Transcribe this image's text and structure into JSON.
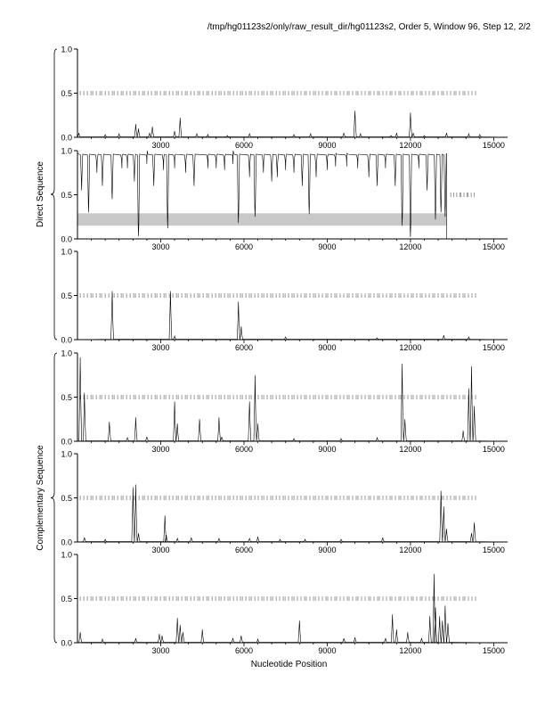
{
  "header": {
    "title": "/tmp/hg01123s2/only/raw_result_dir/hg01123s2, Order 5, Window 96, Step 12, 2/2"
  },
  "groups": [
    {
      "label": "Direct Sequence"
    },
    {
      "label": "Complementary Sequence"
    }
  ],
  "xlabel": "Nucleotide Position",
  "chart_data": [
    {
      "type": "line",
      "title": "",
      "xlim": [
        0,
        15500
      ],
      "ylim": [
        0,
        1
      ],
      "xticks": [
        3000,
        6000,
        9000,
        12000,
        15000
      ],
      "yticks": [
        0,
        0.5,
        1
      ],
      "tick_labels": [
        "0.0",
        "0.5",
        "1.0"
      ],
      "marker_row": {
        "y": 0.5,
        "start": 100,
        "end": 14300,
        "spacing": 110
      },
      "series": [
        {
          "peaks": [
            [
              50,
              0.05
            ],
            [
              1000,
              0.03
            ],
            [
              1500,
              0.04
            ],
            [
              2100,
              0.15
            ],
            [
              2200,
              0.1
            ],
            [
              2600,
              0.05
            ],
            [
              2700,
              0.12
            ],
            [
              3500,
              0.07
            ],
            [
              3700,
              0.22
            ],
            [
              4300,
              0.04
            ],
            [
              4700,
              0.03
            ],
            [
              5400,
              0.02
            ],
            [
              6200,
              0.04
            ],
            [
              7800,
              0.03
            ],
            [
              8400,
              0.04
            ],
            [
              9600,
              0.05
            ],
            [
              10000,
              0.3
            ],
            [
              10200,
              0.04
            ],
            [
              11300,
              0.02
            ],
            [
              11500,
              0.05
            ],
            [
              12000,
              0.28
            ],
            [
              12100,
              0.05
            ],
            [
              12500,
              0.02
            ],
            [
              13300,
              0.05
            ],
            [
              14100,
              0.04
            ],
            [
              14500,
              0.03
            ]
          ]
        }
      ]
    },
    {
      "type": "line",
      "title": "",
      "xlim": [
        0,
        15500
      ],
      "ylim": [
        0,
        1
      ],
      "xticks": [
        3000,
        6000,
        9000,
        12000,
        15000
      ],
      "yticks": [
        0,
        0.5,
        1
      ],
      "tick_labels": [
        "0.0",
        "0.5",
        "1.0"
      ],
      "shaded_band": {
        "x": [
          0,
          13300
        ],
        "y": [
          0.15,
          0.29
        ]
      },
      "marker_row": {
        "y": 0.5,
        "start": 13450,
        "end": 14300,
        "spacing": 90
      },
      "series": [
        {
          "baseline": 0.97,
          "end_x": 13300,
          "dips": [
            [
              150,
              0.55
            ],
            [
              400,
              0.3
            ],
            [
              700,
              0.75
            ],
            [
              900,
              0.6
            ],
            [
              1250,
              0.45
            ],
            [
              1600,
              0.8
            ],
            [
              1800,
              0.8
            ],
            [
              2050,
              0.65
            ],
            [
              2200,
              0.03
            ],
            [
              2500,
              0.85
            ],
            [
              2750,
              0.6
            ],
            [
              3100,
              0.78
            ],
            [
              3250,
              0.12
            ],
            [
              3500,
              0.8
            ],
            [
              3900,
              0.75
            ],
            [
              4200,
              0.6
            ],
            [
              4700,
              0.8
            ],
            [
              5000,
              0.8
            ],
            [
              5300,
              0.78
            ],
            [
              5600,
              0.85
            ],
            [
              5800,
              0.18
            ],
            [
              6200,
              0.7
            ],
            [
              6400,
              0.25
            ],
            [
              6700,
              0.75
            ],
            [
              7000,
              0.65
            ],
            [
              7200,
              0.7
            ],
            [
              7500,
              0.78
            ],
            [
              7800,
              0.75
            ],
            [
              8100,
              0.6
            ],
            [
              8350,
              0.28
            ],
            [
              8600,
              0.7
            ],
            [
              9000,
              0.78
            ],
            [
              9300,
              0.82
            ],
            [
              9700,
              0.82
            ],
            [
              10100,
              0.8
            ],
            [
              10500,
              0.7
            ],
            [
              10800,
              0.6
            ],
            [
              11100,
              0.8
            ],
            [
              11450,
              0.6
            ],
            [
              11700,
              0.15
            ],
            [
              12000,
              0.02
            ],
            [
              12300,
              0.8
            ],
            [
              12600,
              0.55
            ],
            [
              12900,
              0.22
            ],
            [
              13100,
              0.3
            ],
            [
              13250,
              0.25
            ]
          ]
        }
      ]
    },
    {
      "type": "line",
      "title": "",
      "xlim": [
        0,
        15500
      ],
      "ylim": [
        0,
        1
      ],
      "xticks": [
        3000,
        6000,
        9000,
        12000,
        15000
      ],
      "yticks": [
        0,
        0.5,
        1
      ],
      "tick_labels": [
        "0.0",
        "0.5",
        "1.0"
      ],
      "marker_row": {
        "y": 0.5,
        "start": 100,
        "end": 14300,
        "spacing": 110
      },
      "series": [
        {
          "peaks": [
            [
              1250,
              0.55
            ],
            [
              3350,
              0.55
            ],
            [
              3500,
              0.04
            ],
            [
              5800,
              0.43
            ],
            [
              5900,
              0.15
            ],
            [
              7500,
              0.03
            ],
            [
              10800,
              0.02
            ],
            [
              13200,
              0.05
            ],
            [
              14100,
              0.03
            ]
          ]
        }
      ]
    },
    {
      "type": "line",
      "title": "",
      "xlim": [
        0,
        15500
      ],
      "ylim": [
        0,
        1
      ],
      "xticks": [
        3000,
        6000,
        9000,
        12000,
        15000
      ],
      "yticks": [
        0,
        0.5,
        1
      ],
      "tick_labels": [
        "0.0",
        "0.5",
        "1.0"
      ],
      "marker_row": {
        "y": 0.5,
        "start": 100,
        "end": 14300,
        "spacing": 110
      },
      "series": [
        {
          "peaks": [
            [
              100,
              0.95
            ],
            [
              250,
              0.55
            ],
            [
              1150,
              0.22
            ],
            [
              1800,
              0.04
            ],
            [
              2100,
              0.27
            ],
            [
              2500,
              0.05
            ],
            [
              3500,
              0.45
            ],
            [
              3600,
              0.2
            ],
            [
              4400,
              0.25
            ],
            [
              5100,
              0.27
            ],
            [
              5200,
              0.05
            ],
            [
              6200,
              0.45
            ],
            [
              6400,
              0.75
            ],
            [
              6500,
              0.2
            ],
            [
              7800,
              0.03
            ],
            [
              9500,
              0.03
            ],
            [
              10800,
              0.04
            ],
            [
              11700,
              0.88
            ],
            [
              11800,
              0.25
            ],
            [
              13900,
              0.12
            ],
            [
              14100,
              0.6
            ],
            [
              14200,
              0.85
            ],
            [
              14300,
              0.4
            ]
          ]
        }
      ]
    },
    {
      "type": "line",
      "title": "",
      "xlim": [
        0,
        15500
      ],
      "ylim": [
        0,
        1
      ],
      "xticks": [
        3000,
        6000,
        9000,
        12000,
        15000
      ],
      "yticks": [
        0,
        0.5,
        1
      ],
      "tick_labels": [
        "0.0",
        "0.5",
        "1.0"
      ],
      "marker_row": {
        "y": 0.5,
        "start": 100,
        "end": 14300,
        "spacing": 110
      },
      "series": [
        {
          "peaks": [
            [
              250,
              0.05
            ],
            [
              1000,
              0.03
            ],
            [
              2000,
              0.62
            ],
            [
              2100,
              0.65
            ],
            [
              2200,
              0.1
            ],
            [
              3150,
              0.3
            ],
            [
              3200,
              0.08
            ],
            [
              3600,
              0.04
            ],
            [
              4100,
              0.05
            ],
            [
              5100,
              0.04
            ],
            [
              6200,
              0.04
            ],
            [
              6500,
              0.06
            ],
            [
              7300,
              0.03
            ],
            [
              8200,
              0.03
            ],
            [
              9500,
              0.03
            ],
            [
              11000,
              0.05
            ],
            [
              13100,
              0.58
            ],
            [
              13200,
              0.4
            ],
            [
              13300,
              0.15
            ],
            [
              14200,
              0.1
            ],
            [
              14300,
              0.22
            ]
          ]
        }
      ]
    },
    {
      "type": "line",
      "title": "",
      "xlim": [
        0,
        15500
      ],
      "ylim": [
        0,
        1
      ],
      "xticks": [
        3000,
        6000,
        9000,
        12000,
        15000
      ],
      "yticks": [
        0,
        0.5,
        1
      ],
      "tick_labels": [
        "0.0",
        "0.5",
        "1.0"
      ],
      "marker_row": {
        "y": 0.5,
        "start": 100,
        "end": 14300,
        "spacing": 110
      },
      "series": [
        {
          "peaks": [
            [
              100,
              0.12
            ],
            [
              900,
              0.04
            ],
            [
              2100,
              0.05
            ],
            [
              2950,
              0.1
            ],
            [
              3050,
              0.08
            ],
            [
              3600,
              0.28
            ],
            [
              3700,
              0.2
            ],
            [
              3800,
              0.12
            ],
            [
              4500,
              0.15
            ],
            [
              5600,
              0.05
            ],
            [
              5900,
              0.08
            ],
            [
              6500,
              0.04
            ],
            [
              8000,
              0.25
            ],
            [
              9600,
              0.05
            ],
            [
              10000,
              0.06
            ],
            [
              11100,
              0.05
            ],
            [
              11350,
              0.32
            ],
            [
              11500,
              0.15
            ],
            [
              11900,
              0.12
            ],
            [
              12400,
              0.05
            ],
            [
              12700,
              0.3
            ],
            [
              12850,
              0.78
            ],
            [
              12900,
              0.4
            ],
            [
              13050,
              0.3
            ],
            [
              13150,
              0.25
            ],
            [
              13250,
              0.42
            ],
            [
              13350,
              0.22
            ]
          ]
        }
      ]
    }
  ]
}
